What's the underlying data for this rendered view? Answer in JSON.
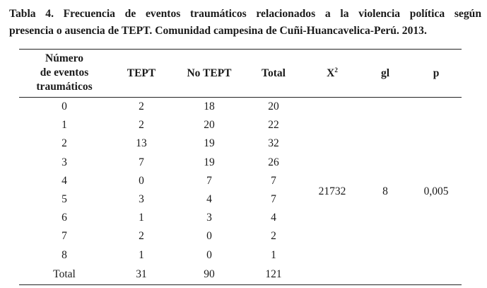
{
  "caption": {
    "line1": "Tabla 4. Frecuencia de eventos traumáticos relacionados a la violencia política según",
    "line2": "presencia o ausencia de TEPT. Comunidad campesina de Cuñi-Huancavelica-Perú. 2013."
  },
  "table": {
    "headers": {
      "events_line1": "Número",
      "events_line2": "de eventos",
      "events_line3": "traumáticos",
      "tept": "TEPT",
      "no_tept": "No TEPT",
      "total": "Total",
      "chi_base": "X",
      "chi_sup": "2",
      "gl": "gl",
      "p": "p"
    },
    "rows": [
      {
        "events": "0",
        "tept": "2",
        "no_tept": "18",
        "total": "20"
      },
      {
        "events": "1",
        "tept": "2",
        "no_tept": "20",
        "total": "22"
      },
      {
        "events": "2",
        "tept": "13",
        "no_tept": "19",
        "total": "32"
      },
      {
        "events": "3",
        "tept": "7",
        "no_tept": "19",
        "total": "26"
      },
      {
        "events": "4",
        "tept": "0",
        "no_tept": "7",
        "total": "7"
      },
      {
        "events": "5",
        "tept": "3",
        "no_tept": "4",
        "total": "7"
      },
      {
        "events": "6",
        "tept": "1",
        "no_tept": "3",
        "total": "4"
      },
      {
        "events": "7",
        "tept": "2",
        "no_tept": "0",
        "total": "2"
      },
      {
        "events": "8",
        "tept": "1",
        "no_tept": "0",
        "total": "1"
      }
    ],
    "total_row": {
      "events": "Total",
      "tept": "31",
      "no_tept": "90",
      "total": "121"
    },
    "stats": {
      "chi": "21732",
      "gl": "8",
      "p": "0,005"
    }
  }
}
